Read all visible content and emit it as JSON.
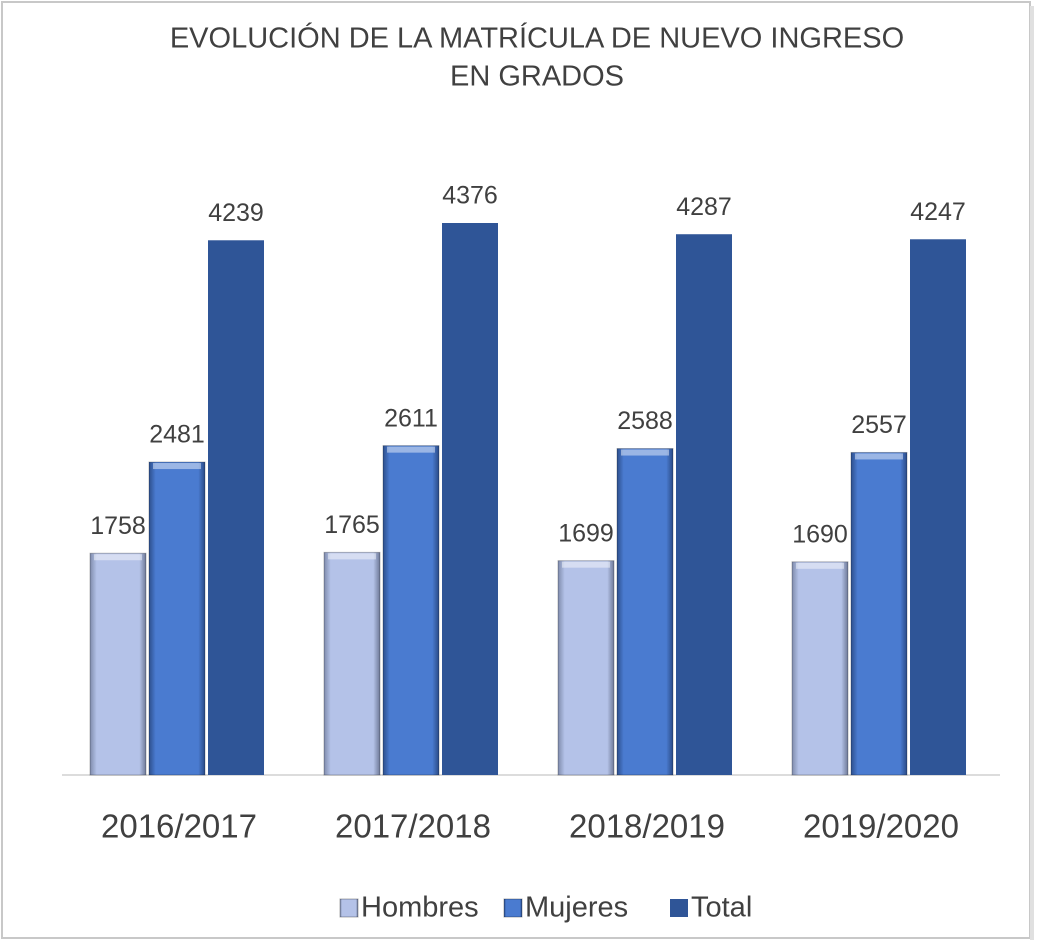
{
  "chart_data": {
    "type": "bar",
    "title": [
      "EVOLUCIÓN DE LA MATRÍCULA DE NUEVO INGRESO",
      "EN GRADOS"
    ],
    "categories": [
      "2016/2017",
      "2017/2018",
      "2018/2019",
      "2019/2020"
    ],
    "series": [
      {
        "name": "Hombres",
        "color": "#b4c2e8",
        "values": [
          1758,
          1765,
          1699,
          1690
        ]
      },
      {
        "name": "Mujeres",
        "color": "#4a7bd0",
        "values": [
          2481,
          2611,
          2588,
          2557
        ]
      },
      {
        "name": "Total",
        "color": "#2f5597",
        "values": [
          4239,
          4376,
          4287,
          4247
        ]
      }
    ],
    "legend": "bottom"
  }
}
